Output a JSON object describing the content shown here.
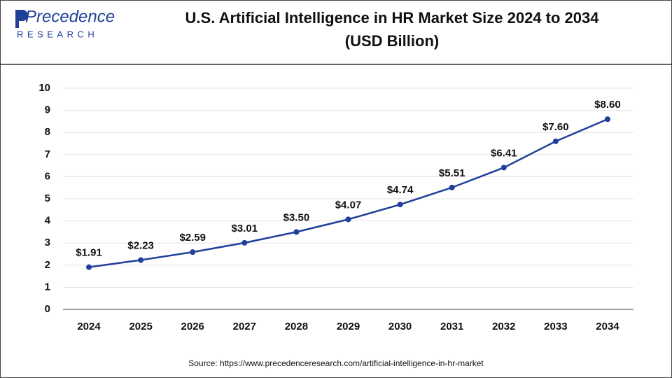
{
  "logo": {
    "name": "Precedence",
    "tagline": "RESEARCH"
  },
  "chart_data": {
    "type": "line",
    "title": "U.S. Artificial Intelligence in HR Market Size 2024 to 2034",
    "subtitle": "(USD Billion)",
    "categories": [
      "2024",
      "2025",
      "2026",
      "2027",
      "2028",
      "2029",
      "2030",
      "2031",
      "2032",
      "2033",
      "2034"
    ],
    "values": [
      1.91,
      2.23,
      2.59,
      3.01,
      3.5,
      4.07,
      4.74,
      5.51,
      6.41,
      7.6,
      8.6
    ],
    "value_labels": [
      "$1.91",
      "$2.23",
      "$2.59",
      "$3.01",
      "$3.50",
      "$4.07",
      "$4.74",
      "$5.51",
      "$6.41",
      "$7.60",
      "$8.60"
    ],
    "color": "#1f3f99",
    "ylim": [
      0,
      10
    ],
    "yticks": [
      0,
      1,
      2,
      3,
      4,
      5,
      6,
      7,
      8,
      9,
      10
    ],
    "grid": true,
    "source": "Source: https://www.precedenceresearch.com/artificial-intelligence-in-hr-market"
  }
}
